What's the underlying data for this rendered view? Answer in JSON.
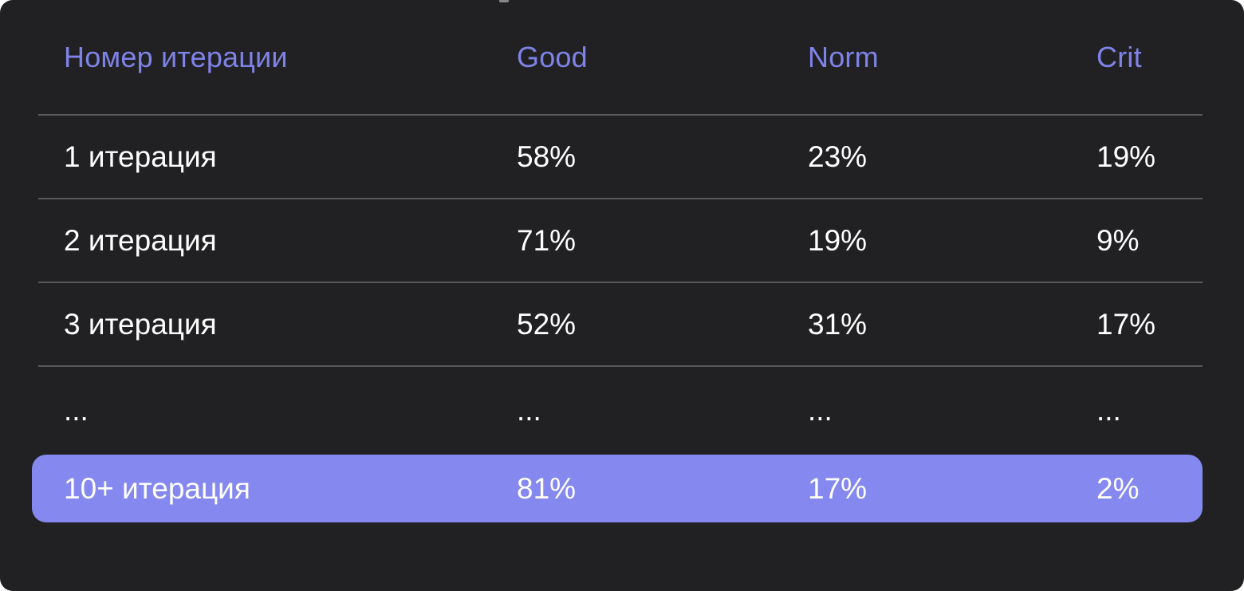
{
  "chart_data": {
    "type": "table",
    "title": "",
    "columns": [
      "Номер итерации",
      "Good",
      "Norm",
      "Crit"
    ],
    "rows": [
      [
        "1 итерация",
        "58%",
        "23%",
        "19%"
      ],
      [
        "2 итерация",
        "71%",
        "19%",
        "9%"
      ],
      [
        "3 итерация",
        "52%",
        "31%",
        "17%"
      ],
      [
        "...",
        "...",
        "...",
        "..."
      ],
      [
        "10+ итерация",
        "81%",
        "17%",
        "2%"
      ]
    ],
    "highlighted_row_index": 4,
    "numeric": {
      "categories": [
        "1 итерация",
        "2 итерация",
        "3 итерация",
        "10+ итерация"
      ],
      "series": [
        {
          "name": "Good",
          "values": [
            58,
            71,
            52,
            81
          ]
        },
        {
          "name": "Norm",
          "values": [
            23,
            19,
            31,
            17
          ]
        },
        {
          "name": "Crit",
          "values": [
            19,
            9,
            17,
            2
          ]
        }
      ],
      "unit": "%"
    }
  },
  "colors": {
    "panel_background": "#212123",
    "header_text": "#7f83e8",
    "divider": "#58585a",
    "highlight_row_background": "#8588ef",
    "cell_text": "#ffffff",
    "page_background": "#ffffff"
  }
}
